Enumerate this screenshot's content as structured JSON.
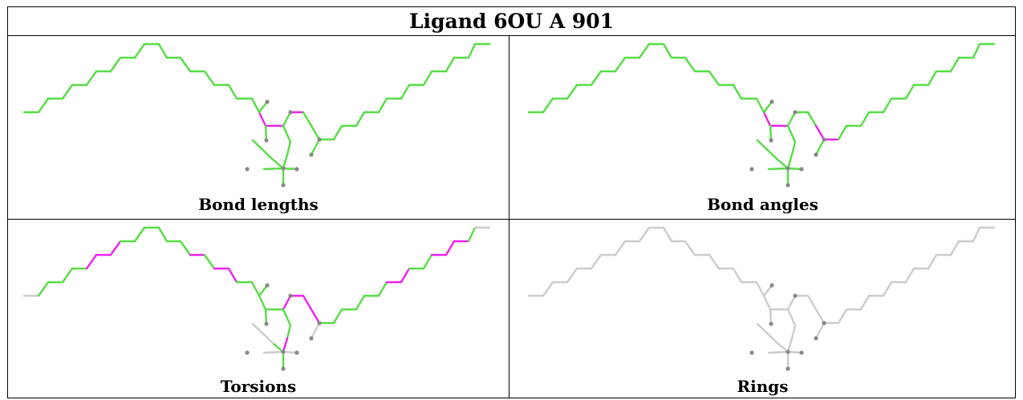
{
  "title": "Ligand 6OU A 901",
  "panels": [
    {
      "id": "bond-lengths",
      "caption": "Bond lengths",
      "scheme": "lengths"
    },
    {
      "id": "bond-angles",
      "caption": "Bond angles",
      "scheme": "angles"
    },
    {
      "id": "torsions",
      "caption": "Torsions",
      "scheme": "torsions"
    },
    {
      "id": "rings",
      "caption": "Rings",
      "scheme": "rings"
    }
  ],
  "colors": {
    "good": "#55dd44",
    "outlier": "#ee22ee",
    "neutral": "#cccccc",
    "atom": "#888888"
  }
}
